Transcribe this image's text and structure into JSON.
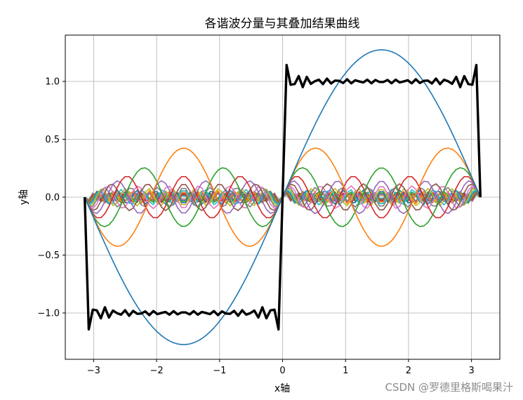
{
  "chart_data": {
    "type": "line",
    "title": "各谐波分量与其叠加结果曲线",
    "xlabel": "x轴",
    "ylabel": "y轴",
    "xlim": [
      -3.45,
      3.45
    ],
    "ylim": [
      -1.4,
      1.4
    ],
    "xticks": [
      -3,
      -2,
      -1,
      0,
      1,
      2,
      3
    ],
    "xtick_labels": [
      "−3",
      "−2",
      "−1",
      "0",
      "1",
      "2",
      "3"
    ],
    "yticks": [
      -1.0,
      -0.5,
      0.0,
      0.5,
      1.0
    ],
    "ytick_labels": [
      "−1.0",
      "−0.5",
      "0.0",
      "0.5",
      "1.0"
    ],
    "grid": true,
    "legend": "none",
    "sample_points": 50,
    "series": [
      {
        "kind": "harmonic",
        "harmonic": 1,
        "amplitude": 1.2732,
        "color": "#1f77b4"
      },
      {
        "kind": "harmonic",
        "harmonic": 3,
        "amplitude": 0.4244,
        "color": "#ff7f0e"
      },
      {
        "kind": "harmonic",
        "harmonic": 5,
        "amplitude": 0.2546,
        "color": "#2ca02c"
      },
      {
        "kind": "harmonic",
        "harmonic": 7,
        "amplitude": 0.1819,
        "color": "#d62728"
      },
      {
        "kind": "harmonic",
        "harmonic": 9,
        "amplitude": 0.1415,
        "color": "#9467bd"
      },
      {
        "kind": "harmonic",
        "harmonic": 11,
        "amplitude": 0.1157,
        "color": "#8c564b"
      },
      {
        "kind": "harmonic",
        "harmonic": 13,
        "amplitude": 0.0979,
        "color": "#e377c2"
      },
      {
        "kind": "harmonic",
        "harmonic": 15,
        "amplitude": 0.0849,
        "color": "#7f7f7f"
      },
      {
        "kind": "harmonic",
        "harmonic": 17,
        "amplitude": 0.0749,
        "color": "#bcbd22"
      },
      {
        "kind": "harmonic",
        "harmonic": 19,
        "amplitude": 0.067,
        "color": "#17becf"
      },
      {
        "kind": "harmonic",
        "harmonic": 21,
        "amplitude": 0.0606,
        "color": "#1f77b4"
      },
      {
        "kind": "harmonic",
        "harmonic": 23,
        "amplitude": 0.0554,
        "color": "#ff7f0e"
      },
      {
        "kind": "harmonic",
        "harmonic": 25,
        "amplitude": 0.0509,
        "color": "#2ca02c"
      },
      {
        "kind": "harmonic",
        "harmonic": 27,
        "amplitude": 0.0472,
        "color": "#d62728"
      },
      {
        "kind": "harmonic",
        "harmonic": 29,
        "amplitude": 0.0439,
        "color": "#9467bd"
      },
      {
        "kind": "harmonic",
        "harmonic": 31,
        "amplitude": 0.0411,
        "color": "#8c564b"
      },
      {
        "kind": "harmonic",
        "harmonic": 33,
        "amplitude": 0.0386,
        "color": "#e377c2"
      },
      {
        "kind": "harmonic",
        "harmonic": 35,
        "amplitude": 0.0364,
        "color": "#7f7f7f"
      },
      {
        "kind": "harmonic",
        "harmonic": 37,
        "amplitude": 0.0344,
        "color": "#bcbd22"
      },
      {
        "kind": "harmonic",
        "harmonic": 39,
        "amplitude": 0.0326,
        "color": "#17becf"
      },
      {
        "kind": "sum",
        "color": "#000000"
      }
    ]
  },
  "watermark": "CSDN @罗德里格斯喝果汁"
}
